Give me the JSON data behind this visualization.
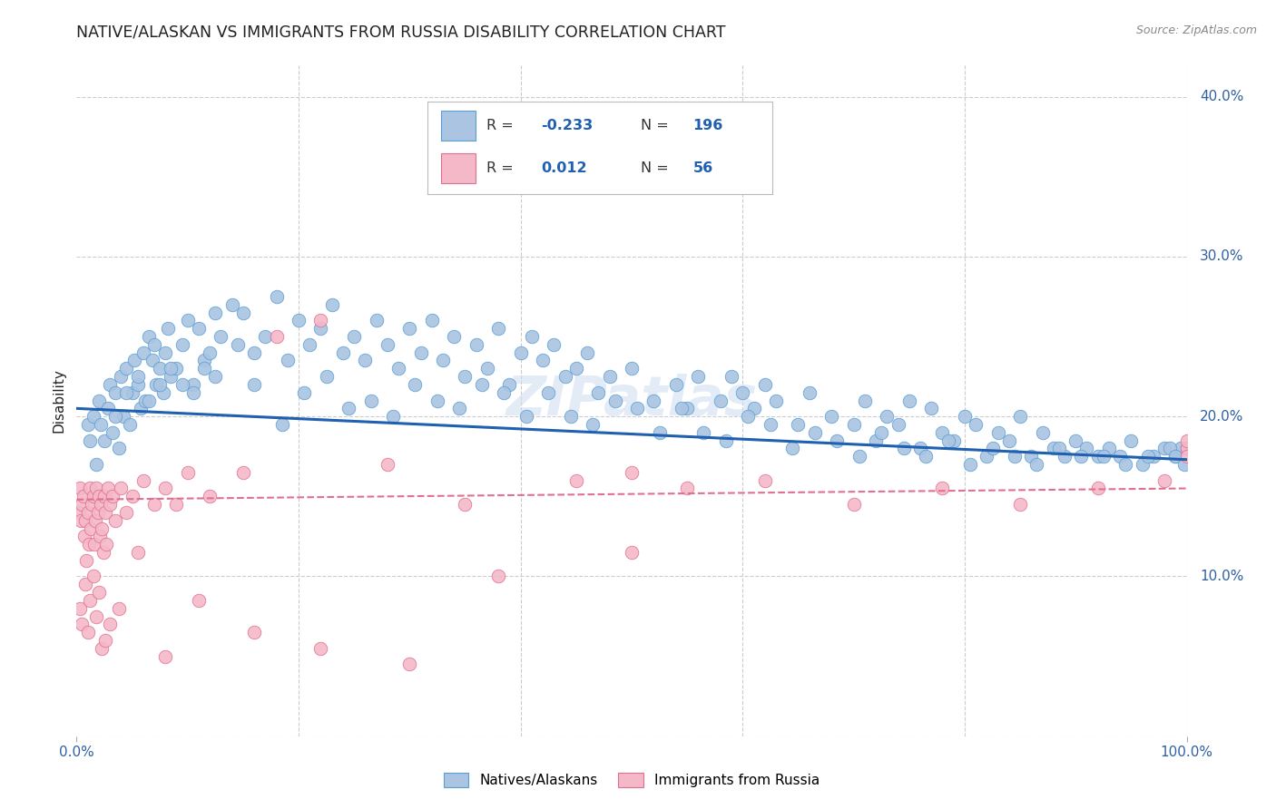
{
  "title": "NATIVE/ALASKAN VS IMMIGRANTS FROM RUSSIA DISABILITY CORRELATION CHART",
  "source": "Source: ZipAtlas.com",
  "ylabel": "Disability",
  "xlim": [
    0,
    100
  ],
  "ylim": [
    0,
    42
  ],
  "yticks": [
    0,
    10,
    20,
    30,
    40
  ],
  "blue_R": "-0.233",
  "blue_N": "196",
  "pink_R": "0.012",
  "pink_N": "56",
  "blue_scatter_color": "#aac4e2",
  "blue_edge_color": "#5a9fd4",
  "pink_scatter_color": "#f4b8c8",
  "pink_edge_color": "#e07090",
  "blue_line_color": "#2060b0",
  "pink_line_color": "#e07090",
  "axis_label_color": "#3060a0",
  "text_color": "#222222",
  "grid_color": "#cccccc",
  "watermark": "ZIPatlas",
  "legend_label_blue": "Natives/Alaskans",
  "legend_label_pink": "Immigrants from Russia",
  "blue_trend_x0": 0,
  "blue_trend_x1": 100,
  "blue_trend_y0": 20.5,
  "blue_trend_y1": 17.3,
  "pink_trend_x0": 0,
  "pink_trend_x1": 100,
  "pink_trend_y0": 14.8,
  "pink_trend_y1": 15.5,
  "blue_x": [
    1.0,
    1.2,
    1.5,
    1.8,
    2.0,
    2.2,
    2.5,
    2.8,
    3.0,
    3.2,
    3.5,
    3.8,
    4.0,
    4.2,
    4.5,
    4.8,
    5.0,
    5.2,
    5.5,
    5.8,
    6.0,
    6.2,
    6.5,
    6.8,
    7.0,
    7.2,
    7.5,
    7.8,
    8.0,
    8.2,
    8.5,
    9.0,
    9.5,
    10.0,
    10.5,
    11.0,
    11.5,
    12.0,
    12.5,
    13.0,
    14.0,
    15.0,
    16.0,
    17.0,
    18.0,
    19.0,
    20.0,
    21.0,
    22.0,
    23.0,
    24.0,
    25.0,
    26.0,
    27.0,
    28.0,
    29.0,
    30.0,
    31.0,
    32.0,
    33.0,
    34.0,
    35.0,
    36.0,
    37.0,
    38.0,
    39.0,
    40.0,
    41.0,
    42.0,
    43.0,
    44.0,
    45.0,
    46.0,
    47.0,
    48.0,
    50.0,
    52.0,
    54.0,
    55.0,
    56.0,
    58.0,
    59.0,
    60.0,
    61.0,
    62.0,
    63.0,
    65.0,
    66.0,
    68.0,
    70.0,
    71.0,
    72.0,
    73.0,
    74.0,
    75.0,
    76.0,
    77.0,
    78.0,
    79.0,
    80.0,
    81.0,
    82.0,
    83.0,
    84.0,
    85.0,
    86.0,
    87.0,
    88.0,
    89.0,
    90.0,
    91.0,
    92.0,
    93.0,
    94.0,
    95.0,
    96.0,
    97.0,
    98.0,
    99.0,
    99.5,
    3.5,
    4.5,
    5.5,
    6.5,
    7.5,
    8.5,
    9.5,
    10.5,
    11.5,
    12.5,
    14.5,
    16.0,
    18.5,
    20.5,
    22.5,
    24.5,
    26.5,
    28.5,
    30.5,
    32.5,
    34.5,
    36.5,
    38.5,
    40.5,
    42.5,
    44.5,
    46.5,
    48.5,
    50.5,
    52.5,
    54.5,
    56.5,
    58.5,
    60.5,
    62.5,
    64.5,
    66.5,
    68.5,
    70.5,
    72.5,
    74.5,
    76.5,
    78.5,
    80.5,
    82.5,
    84.5,
    86.5,
    88.5,
    90.5,
    92.5,
    94.5,
    96.5,
    98.5,
    99.0,
    99.8,
    100.0
  ],
  "blue_y": [
    19.5,
    18.5,
    20.0,
    17.0,
    21.0,
    19.5,
    18.5,
    20.5,
    22.0,
    19.0,
    21.5,
    18.0,
    22.5,
    20.0,
    23.0,
    19.5,
    21.5,
    23.5,
    22.0,
    20.5,
    24.0,
    21.0,
    25.0,
    23.5,
    24.5,
    22.0,
    23.0,
    21.5,
    24.0,
    25.5,
    22.5,
    23.0,
    24.5,
    26.0,
    22.0,
    25.5,
    23.5,
    24.0,
    26.5,
    25.0,
    27.0,
    26.5,
    24.0,
    25.0,
    27.5,
    23.5,
    26.0,
    24.5,
    25.5,
    27.0,
    24.0,
    25.0,
    23.5,
    26.0,
    24.5,
    23.0,
    25.5,
    24.0,
    26.0,
    23.5,
    25.0,
    22.5,
    24.5,
    23.0,
    25.5,
    22.0,
    24.0,
    25.0,
    23.5,
    24.5,
    22.5,
    23.0,
    24.0,
    21.5,
    22.5,
    23.0,
    21.0,
    22.0,
    20.5,
    22.5,
    21.0,
    22.5,
    21.5,
    20.5,
    22.0,
    21.0,
    19.5,
    21.5,
    20.0,
    19.5,
    21.0,
    18.5,
    20.0,
    19.5,
    21.0,
    18.0,
    20.5,
    19.0,
    18.5,
    20.0,
    19.5,
    17.5,
    19.0,
    18.5,
    20.0,
    17.5,
    19.0,
    18.0,
    17.5,
    18.5,
    18.0,
    17.5,
    18.0,
    17.5,
    18.5,
    17.0,
    17.5,
    18.0,
    17.5,
    18.0,
    20.0,
    21.5,
    22.5,
    21.0,
    22.0,
    23.0,
    22.0,
    21.5,
    23.0,
    22.5,
    24.5,
    22.0,
    19.5,
    21.5,
    22.5,
    20.5,
    21.0,
    20.0,
    22.0,
    21.0,
    20.5,
    22.0,
    21.5,
    20.0,
    21.5,
    20.0,
    19.5,
    21.0,
    20.5,
    19.0,
    20.5,
    19.0,
    18.5,
    20.0,
    19.5,
    18.0,
    19.0,
    18.5,
    17.5,
    19.0,
    18.0,
    17.5,
    18.5,
    17.0,
    18.0,
    17.5,
    17.0,
    18.0,
    17.5,
    17.5,
    17.0,
    17.5,
    18.0,
    17.5,
    17.0,
    18.0
  ],
  "pink_x": [
    0.2,
    0.3,
    0.4,
    0.5,
    0.6,
    0.7,
    0.8,
    0.9,
    1.0,
    1.1,
    1.2,
    1.3,
    1.4,
    1.5,
    1.6,
    1.7,
    1.8,
    1.9,
    2.0,
    2.1,
    2.2,
    2.3,
    2.4,
    2.5,
    2.6,
    2.7,
    2.8,
    3.0,
    3.2,
    3.5,
    4.0,
    4.5,
    5.0,
    6.0,
    7.0,
    8.0,
    9.0,
    10.0,
    12.0,
    15.0,
    18.0,
    22.0,
    28.0,
    35.0,
    45.0,
    50.0,
    55.0,
    62.0,
    70.0,
    78.0,
    85.0,
    92.0,
    98.0,
    100.0,
    100.0,
    100.0
  ],
  "pink_y": [
    14.0,
    15.5,
    13.5,
    14.5,
    15.0,
    12.5,
    13.5,
    11.0,
    14.0,
    12.0,
    15.5,
    13.0,
    14.5,
    15.0,
    12.0,
    13.5,
    15.5,
    14.0,
    15.0,
    12.5,
    14.5,
    13.0,
    11.5,
    15.0,
    14.0,
    12.0,
    15.5,
    14.5,
    15.0,
    13.5,
    15.5,
    14.0,
    15.0,
    16.0,
    14.5,
    15.5,
    14.5,
    16.5,
    15.0,
    16.5,
    25.0,
    26.0,
    17.0,
    14.5,
    16.0,
    16.5,
    15.5,
    16.0,
    14.5,
    15.5,
    14.5,
    15.5,
    16.0,
    18.0,
    17.5,
    18.5
  ],
  "pink_extra_x": [
    0.3,
    0.5,
    0.8,
    1.0,
    1.2,
    1.5,
    1.8,
    2.0,
    2.3,
    2.6,
    3.0,
    3.8,
    5.5,
    8.0,
    11.0,
    16.0,
    22.0,
    30.0,
    38.0,
    50.0
  ],
  "pink_extra_y": [
    8.0,
    7.0,
    9.5,
    6.5,
    8.5,
    10.0,
    7.5,
    9.0,
    5.5,
    6.0,
    7.0,
    8.0,
    11.5,
    5.0,
    8.5,
    6.5,
    5.5,
    4.5,
    10.0,
    11.5
  ]
}
